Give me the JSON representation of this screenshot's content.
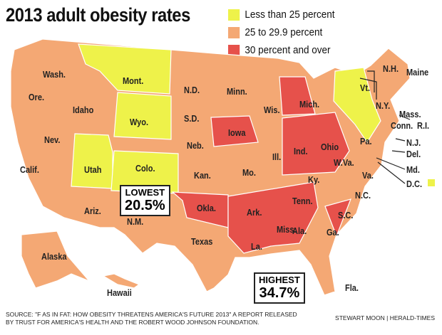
{
  "title": "2013 adult obesity rates",
  "colors": {
    "low": "#eef24a",
    "mid": "#f4a874",
    "high": "#e6514b"
  },
  "legend": [
    {
      "label": "Less than 25 percent",
      "color": "#eef24a"
    },
    {
      "label": "25 to 29.9 percent",
      "color": "#f4a874"
    },
    {
      "label": "30 percent and over",
      "color": "#e6514b"
    }
  ],
  "states": {
    "wash": "Wash.",
    "ore": "Ore.",
    "idaho": "Idaho",
    "mont": "Mont.",
    "wyo": "Wyo.",
    "nev": "Nev.",
    "calif": "Calif.",
    "utah": "Utah",
    "colo": "Colo.",
    "ariz": "Ariz.",
    "nm": "N.M.",
    "nd": "N.D.",
    "sd": "S.D.",
    "neb": "Neb.",
    "kan": "Kan.",
    "okla": "Okla.",
    "texas": "Texas",
    "minn": "Minn.",
    "iowa": "Iowa",
    "mo": "Mo.",
    "ark": "Ark.",
    "la": "La.",
    "wis": "Wis.",
    "ill": "Ill.",
    "mich": "Mich.",
    "ind": "Ind.",
    "ohio": "Ohio",
    "ky": "Ky.",
    "tenn": "Tenn.",
    "miss": "Miss.",
    "ala": "Ala.",
    "ga": "Ga.",
    "fla": "Fla.",
    "sc": "S.C.",
    "nc": "N.C.",
    "va": "Va.",
    "wva": "W.Va.",
    "pa": "Pa.",
    "ny": "N.Y.",
    "vt": "Vt.",
    "nh": "N.H.",
    "maine": "Maine",
    "mass": "Mass.",
    "conn": "Conn.",
    "ri": "R.I.",
    "nj": "N.J.",
    "del": "Del.",
    "md": "Md.",
    "dc": "D.C.",
    "alaska": "Alaska",
    "hawaii": "Hawaii"
  },
  "lowest": {
    "label": "LOWEST",
    "value": "20.5%"
  },
  "highest": {
    "label": "HIGHEST",
    "value": "34.7%"
  },
  "source": "SOURCE: \"F AS IN FAT: HOW OBESITY THREATENS AMERICA'S FUTURE 2013\" A REPORT RELEASED BY TRUST FOR AMERICA'S HEALTH AND THE ROBERT WOOD JOHNSON FOUNDATION.",
  "credit": "STEWART MOON | HERALD-TIMES"
}
